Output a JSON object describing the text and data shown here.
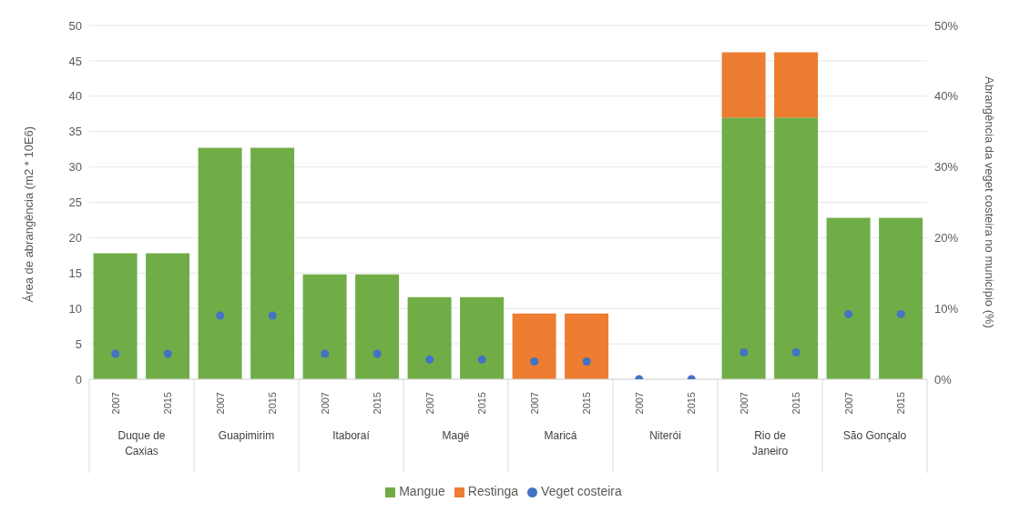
{
  "chart_data": {
    "type": "bar",
    "stacked": true,
    "categories": [
      "2007",
      "2015",
      "2007",
      "2015",
      "2007",
      "2015",
      "2007",
      "2015",
      "2007",
      "2015",
      "2007",
      "2015",
      "2007",
      "2015",
      "2007",
      "2015"
    ],
    "annotations": [
      "Duque de Caxias",
      "Guapimirim",
      "Itaboraí",
      "Magé",
      "Maricá",
      "Niterói",
      "Rio de Janeiro",
      "São Gonçalo"
    ],
    "series": [
      {
        "name": "Mangue",
        "color": "#70ad47",
        "values": [
          17.8,
          17.8,
          32.7,
          32.7,
          14.8,
          14.8,
          11.6,
          11.6,
          null,
          null,
          null,
          null,
          37.0,
          37.0,
          22.8,
          22.8
        ]
      },
      {
        "name": "Restinga",
        "color": "#ed7d31",
        "values": [
          null,
          null,
          null,
          null,
          null,
          null,
          null,
          null,
          9.3,
          9.3,
          null,
          null,
          9.2,
          9.2,
          null,
          null
        ]
      },
      {
        "name": "Veget costeira",
        "type": "scatter",
        "axis": "y2",
        "marker": "circle",
        "color": "#4472c4",
        "values": [
          3.6,
          3.6,
          9.0,
          9.0,
          3.6,
          3.6,
          2.8,
          2.8,
          2.5,
          2.5,
          0,
          0,
          3.8,
          3.8,
          9.2,
          9.2
        ]
      }
    ],
    "ylabel": "Área de abrangência (m2 * 10E6)",
    "y2label": "Abrangência da veget costeira no município (%)",
    "ylim": [
      0,
      50
    ],
    "yticks": [
      0,
      5,
      10,
      15,
      20,
      25,
      30,
      35,
      40,
      45,
      50
    ],
    "y2lim": [
      0,
      50
    ],
    "y2ticks": [
      {
        "value": 0,
        "label": "0%"
      },
      {
        "value": 10,
        "label": "10%"
      },
      {
        "value": 20,
        "label": "20%"
      },
      {
        "value": 30,
        "label": "30%"
      },
      {
        "value": 40,
        "label": "40%"
      },
      {
        "value": 50,
        "label": "50%"
      }
    ],
    "grid": "y",
    "legend": "bottom"
  }
}
